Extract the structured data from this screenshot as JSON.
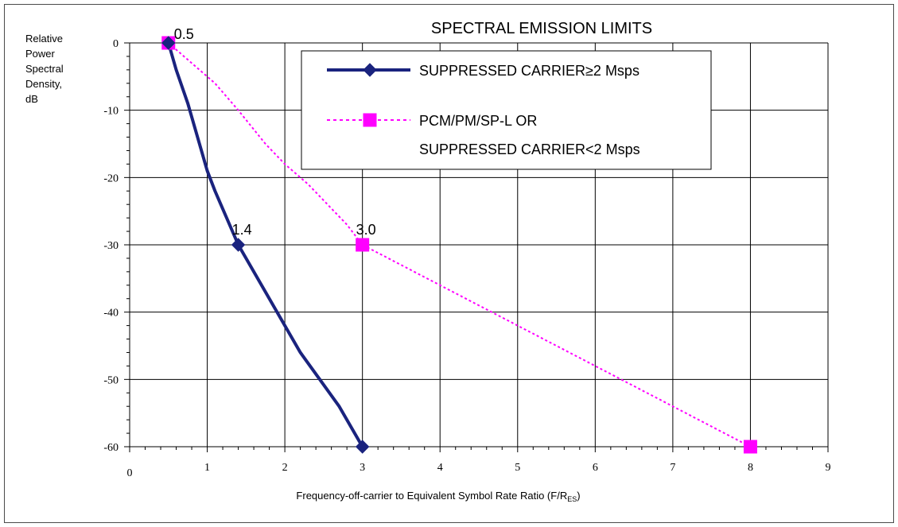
{
  "chart_data": {
    "type": "line",
    "title": "SPECTRAL EMISSION LIMITS",
    "ylabel_lines": [
      "Relative",
      "Power",
      "Spectral",
      "Density,",
      "dB"
    ],
    "xlabel": "Frequency-off-carrier to Equivalent Symbol Rate Ratio (F/R",
    "xlabel_subscript": "ES",
    "xlabel_close": ")",
    "x_ticks": [
      "0",
      "1",
      "2",
      "3",
      "4",
      "5",
      "6",
      "7",
      "8",
      "9"
    ],
    "y_ticks": [
      "0",
      "-10",
      "-20",
      "-30",
      "-40",
      "-50",
      "-60"
    ],
    "xlim": [
      0,
      9
    ],
    "ylim": [
      -60,
      0
    ],
    "grid": true,
    "legend_position": "top-right",
    "series": [
      {
        "name": "SUPPRESSED CARRIER≥2 Msps",
        "color": "#1a237e",
        "style": "solid",
        "marker": "diamond",
        "x": [
          0.5,
          0.6,
          0.75,
          0.9,
          1.0,
          1.1,
          1.25,
          1.4,
          1.55,
          1.75,
          2.0,
          2.2,
          2.45,
          2.7,
          3.0
        ],
        "y": [
          0,
          -4,
          -9,
          -15,
          -19,
          -22,
          -26,
          -30,
          -33,
          -37,
          -42,
          -46,
          -50,
          -54,
          -60
        ],
        "marker_x": [
          0.5,
          1.4,
          3.0
        ],
        "marker_y": [
          0,
          -30,
          -60
        ]
      },
      {
        "name_lines": [
          "PCM/PM/SP-L OR",
          "SUPPRESSED CARRIER<2 Msps"
        ],
        "color": "#ff00ff",
        "style": "dotted",
        "marker": "square",
        "x": [
          0.5,
          0.8,
          1.1,
          1.4,
          1.75,
          2.0,
          2.3,
          2.55,
          2.8,
          3.0,
          3.5,
          4.0,
          4.5,
          5.0,
          5.5,
          6.0,
          6.5,
          7.0,
          7.5,
          8.0
        ],
        "y": [
          0,
          -3,
          -6,
          -10,
          -15,
          -18,
          -21,
          -24,
          -27,
          -30,
          -33,
          -36,
          -39,
          -42,
          -45,
          -48,
          -51,
          -54,
          -57,
          -60
        ],
        "marker_x": [
          0.5,
          3.0,
          8.0
        ],
        "marker_y": [
          0,
          -30,
          -60
        ]
      }
    ],
    "annotations": [
      {
        "text": "0.5",
        "x": 0.5,
        "y": 0
      },
      {
        "text": "1.4",
        "x": 1.4,
        "y": -30
      },
      {
        "text": "3.0",
        "x": 3.0,
        "y": -30
      }
    ]
  }
}
